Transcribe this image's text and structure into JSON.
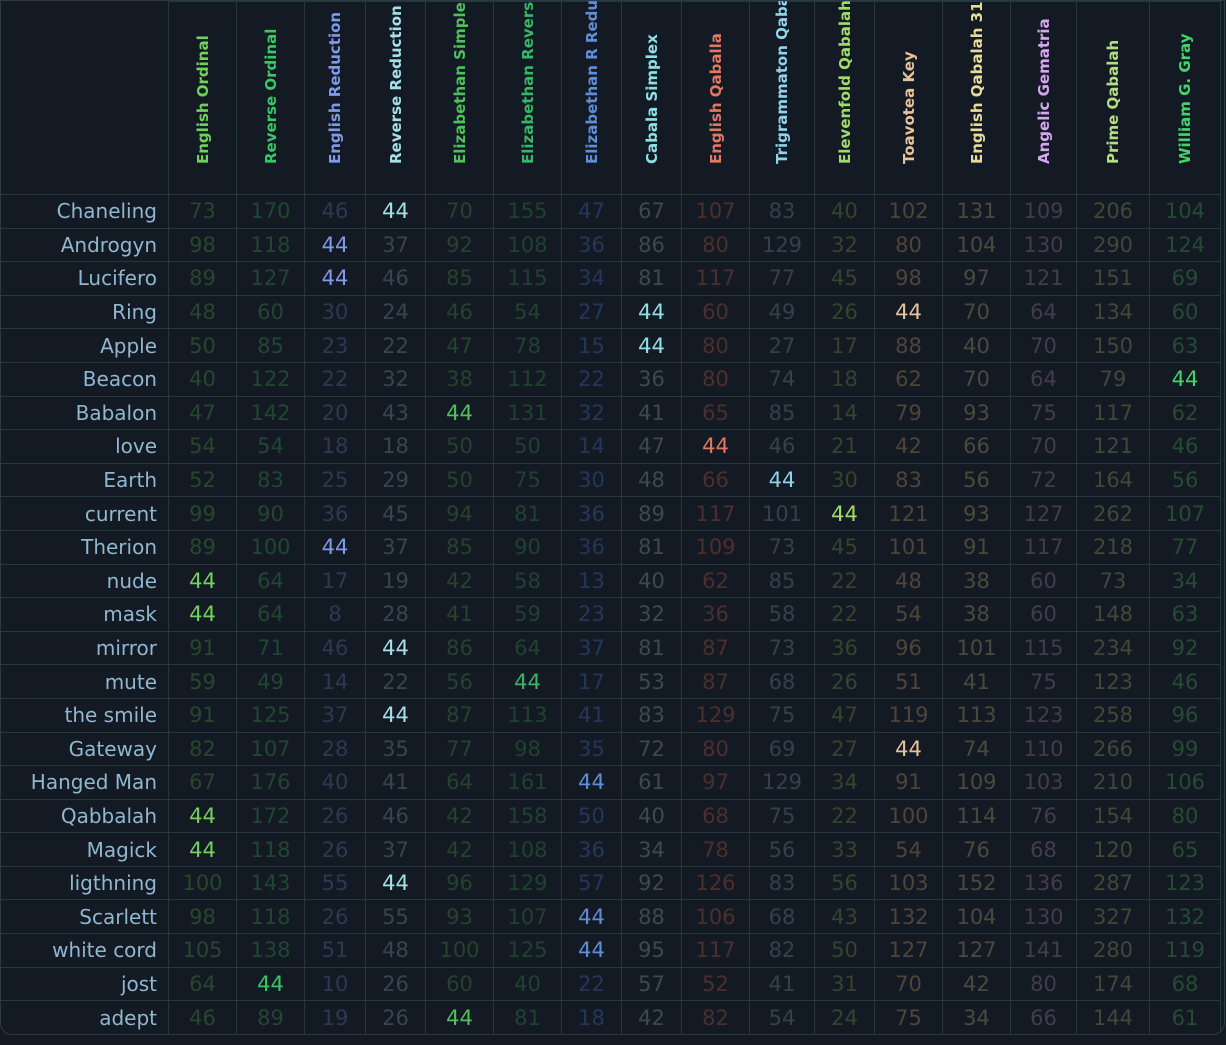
{
  "target": "44",
  "ciphers": [
    {
      "name": "English Ordinal",
      "color": "#6fd35a",
      "dim": "#27472d"
    },
    {
      "name": "Reverse Ordinal",
      "color": "#39c765",
      "dim": "#214631"
    },
    {
      "name": "English Reduction",
      "color": "#7f9ae8",
      "dim": "#2b3a52"
    },
    {
      "name": "Reverse Reduction",
      "color": "#a4e0e8",
      "dim": "#354650"
    },
    {
      "name": "Elizabethan Simple",
      "color": "#4ec15a",
      "dim": "#25432c"
    },
    {
      "name": "Elizabethan Reverse",
      "color": "#36b766",
      "dim": "#1f4230"
    },
    {
      "name": "Elizabethan R Reducti",
      "color": "#5f8ed8",
      "dim": "#24375a"
    },
    {
      "name": "Cabala Simplex",
      "color": "#8fe0e6",
      "dim": "#3a4a52"
    },
    {
      "name": "English Qaballa",
      "color": "#e27863",
      "dim": "#4c2f2c"
    },
    {
      "name": "Trigrammaton Qabala",
      "color": "#8ed3ea",
      "dim": "#33414c"
    },
    {
      "name": "Elevenfold Qabalah",
      "color": "#9fdc6a",
      "dim": "#33452c"
    },
    {
      "name": "Toavotea Key",
      "color": "#e8c29a",
      "dim": "#4e4538"
    },
    {
      "name": "English Qabalah 31",
      "color": "#e6dc9a",
      "dim": "#4a4a3c"
    },
    {
      "name": "Angelic Gematria",
      "color": "#d6a6f2",
      "dim": "#423c4e"
    },
    {
      "name": "Prime Qabalah",
      "color": "#b4dc82",
      "dim": "#3d4a36"
    },
    {
      "name": "William G. Gray",
      "color": "#45d26a",
      "dim": "#264b33"
    }
  ],
  "rows": [
    {
      "word": "Chaneling",
      "values": [
        "73",
        "170",
        "46",
        "44",
        "70",
        "155",
        "47",
        "67",
        "107",
        "83",
        "40",
        "102",
        "131",
        "109",
        "206",
        "104"
      ]
    },
    {
      "word": "Androgyn",
      "values": [
        "98",
        "118",
        "44",
        "37",
        "92",
        "108",
        "36",
        "86",
        "80",
        "129",
        "32",
        "80",
        "104",
        "130",
        "290",
        "124"
      ]
    },
    {
      "word": "Lucifero",
      "values": [
        "89",
        "127",
        "44",
        "46",
        "85",
        "115",
        "34",
        "81",
        "117",
        "77",
        "45",
        "98",
        "97",
        "121",
        "151",
        "69"
      ]
    },
    {
      "word": "Ring",
      "values": [
        "48",
        "60",
        "30",
        "24",
        "46",
        "54",
        "27",
        "44",
        "60",
        "49",
        "26",
        "44",
        "70",
        "64",
        "134",
        "60"
      ]
    },
    {
      "word": "Apple",
      "values": [
        "50",
        "85",
        "23",
        "22",
        "47",
        "78",
        "15",
        "44",
        "80",
        "27",
        "17",
        "88",
        "40",
        "70",
        "150",
        "63"
      ]
    },
    {
      "word": "Beacon",
      "values": [
        "40",
        "122",
        "22",
        "32",
        "38",
        "112",
        "22",
        "36",
        "80",
        "74",
        "18",
        "62",
        "70",
        "64",
        "79",
        "44"
      ]
    },
    {
      "word": "Babalon",
      "values": [
        "47",
        "142",
        "20",
        "43",
        "44",
        "131",
        "32",
        "41",
        "65",
        "85",
        "14",
        "79",
        "93",
        "75",
        "117",
        "62"
      ]
    },
    {
      "word": "love",
      "values": [
        "54",
        "54",
        "18",
        "18",
        "50",
        "50",
        "14",
        "47",
        "44",
        "46",
        "21",
        "42",
        "66",
        "70",
        "121",
        "46"
      ]
    },
    {
      "word": "Earth",
      "values": [
        "52",
        "83",
        "25",
        "29",
        "50",
        "75",
        "30",
        "48",
        "66",
        "44",
        "30",
        "83",
        "56",
        "72",
        "164",
        "56"
      ]
    },
    {
      "word": "current",
      "values": [
        "99",
        "90",
        "36",
        "45",
        "94",
        "81",
        "36",
        "89",
        "117",
        "101",
        "44",
        "121",
        "93",
        "127",
        "262",
        "107"
      ]
    },
    {
      "word": "Therion",
      "values": [
        "89",
        "100",
        "44",
        "37",
        "85",
        "90",
        "36",
        "81",
        "109",
        "73",
        "45",
        "101",
        "91",
        "117",
        "218",
        "77"
      ]
    },
    {
      "word": "nude",
      "values": [
        "44",
        "64",
        "17",
        "19",
        "42",
        "58",
        "13",
        "40",
        "62",
        "85",
        "22",
        "48",
        "38",
        "60",
        "73",
        "34"
      ]
    },
    {
      "word": "mask",
      "values": [
        "44",
        "64",
        "8",
        "28",
        "41",
        "59",
        "23",
        "32",
        "36",
        "58",
        "22",
        "54",
        "38",
        "60",
        "148",
        "63"
      ]
    },
    {
      "word": "mirror",
      "values": [
        "91",
        "71",
        "46",
        "44",
        "86",
        "64",
        "37",
        "81",
        "87",
        "73",
        "36",
        "96",
        "101",
        "115",
        "234",
        "92"
      ]
    },
    {
      "word": "mute",
      "values": [
        "59",
        "49",
        "14",
        "22",
        "56",
        "44",
        "17",
        "53",
        "87",
        "68",
        "26",
        "51",
        "41",
        "75",
        "123",
        "46"
      ]
    },
    {
      "word": "the smile",
      "values": [
        "91",
        "125",
        "37",
        "44",
        "87",
        "113",
        "41",
        "83",
        "129",
        "75",
        "47",
        "119",
        "113",
        "123",
        "258",
        "96"
      ]
    },
    {
      "word": "Gateway",
      "values": [
        "82",
        "107",
        "28",
        "35",
        "77",
        "98",
        "35",
        "72",
        "80",
        "69",
        "27",
        "44",
        "74",
        "110",
        "266",
        "99"
      ]
    },
    {
      "word": "Hanged Man",
      "values": [
        "67",
        "176",
        "40",
        "41",
        "64",
        "161",
        "44",
        "61",
        "97",
        "129",
        "34",
        "91",
        "109",
        "103",
        "210",
        "106"
      ]
    },
    {
      "word": "Qabbalah",
      "values": [
        "44",
        "172",
        "26",
        "46",
        "42",
        "158",
        "50",
        "40",
        "68",
        "75",
        "22",
        "100",
        "114",
        "76",
        "154",
        "80"
      ]
    },
    {
      "word": "Magick",
      "values": [
        "44",
        "118",
        "26",
        "37",
        "42",
        "108",
        "36",
        "34",
        "78",
        "56",
        "33",
        "54",
        "76",
        "68",
        "120",
        "65"
      ]
    },
    {
      "word": "ligthning",
      "values": [
        "100",
        "143",
        "55",
        "44",
        "96",
        "129",
        "57",
        "92",
        "126",
        "83",
        "56",
        "103",
        "152",
        "136",
        "287",
        "123"
      ]
    },
    {
      "word": "Scarlett",
      "values": [
        "98",
        "118",
        "26",
        "55",
        "93",
        "107",
        "44",
        "88",
        "106",
        "68",
        "43",
        "132",
        "104",
        "130",
        "327",
        "132"
      ]
    },
    {
      "word": "white cord",
      "values": [
        "105",
        "138",
        "51",
        "48",
        "100",
        "125",
        "44",
        "95",
        "117",
        "82",
        "50",
        "127",
        "127",
        "141",
        "280",
        "119"
      ]
    },
    {
      "word": "jost",
      "values": [
        "64",
        "44",
        "10",
        "26",
        "60",
        "40",
        "22",
        "57",
        "52",
        "41",
        "31",
        "70",
        "42",
        "80",
        "174",
        "68"
      ]
    },
    {
      "word": "adept",
      "values": [
        "46",
        "89",
        "19",
        "26",
        "44",
        "81",
        "18",
        "42",
        "82",
        "54",
        "24",
        "75",
        "34",
        "66",
        "144",
        "61"
      ]
    }
  ]
}
